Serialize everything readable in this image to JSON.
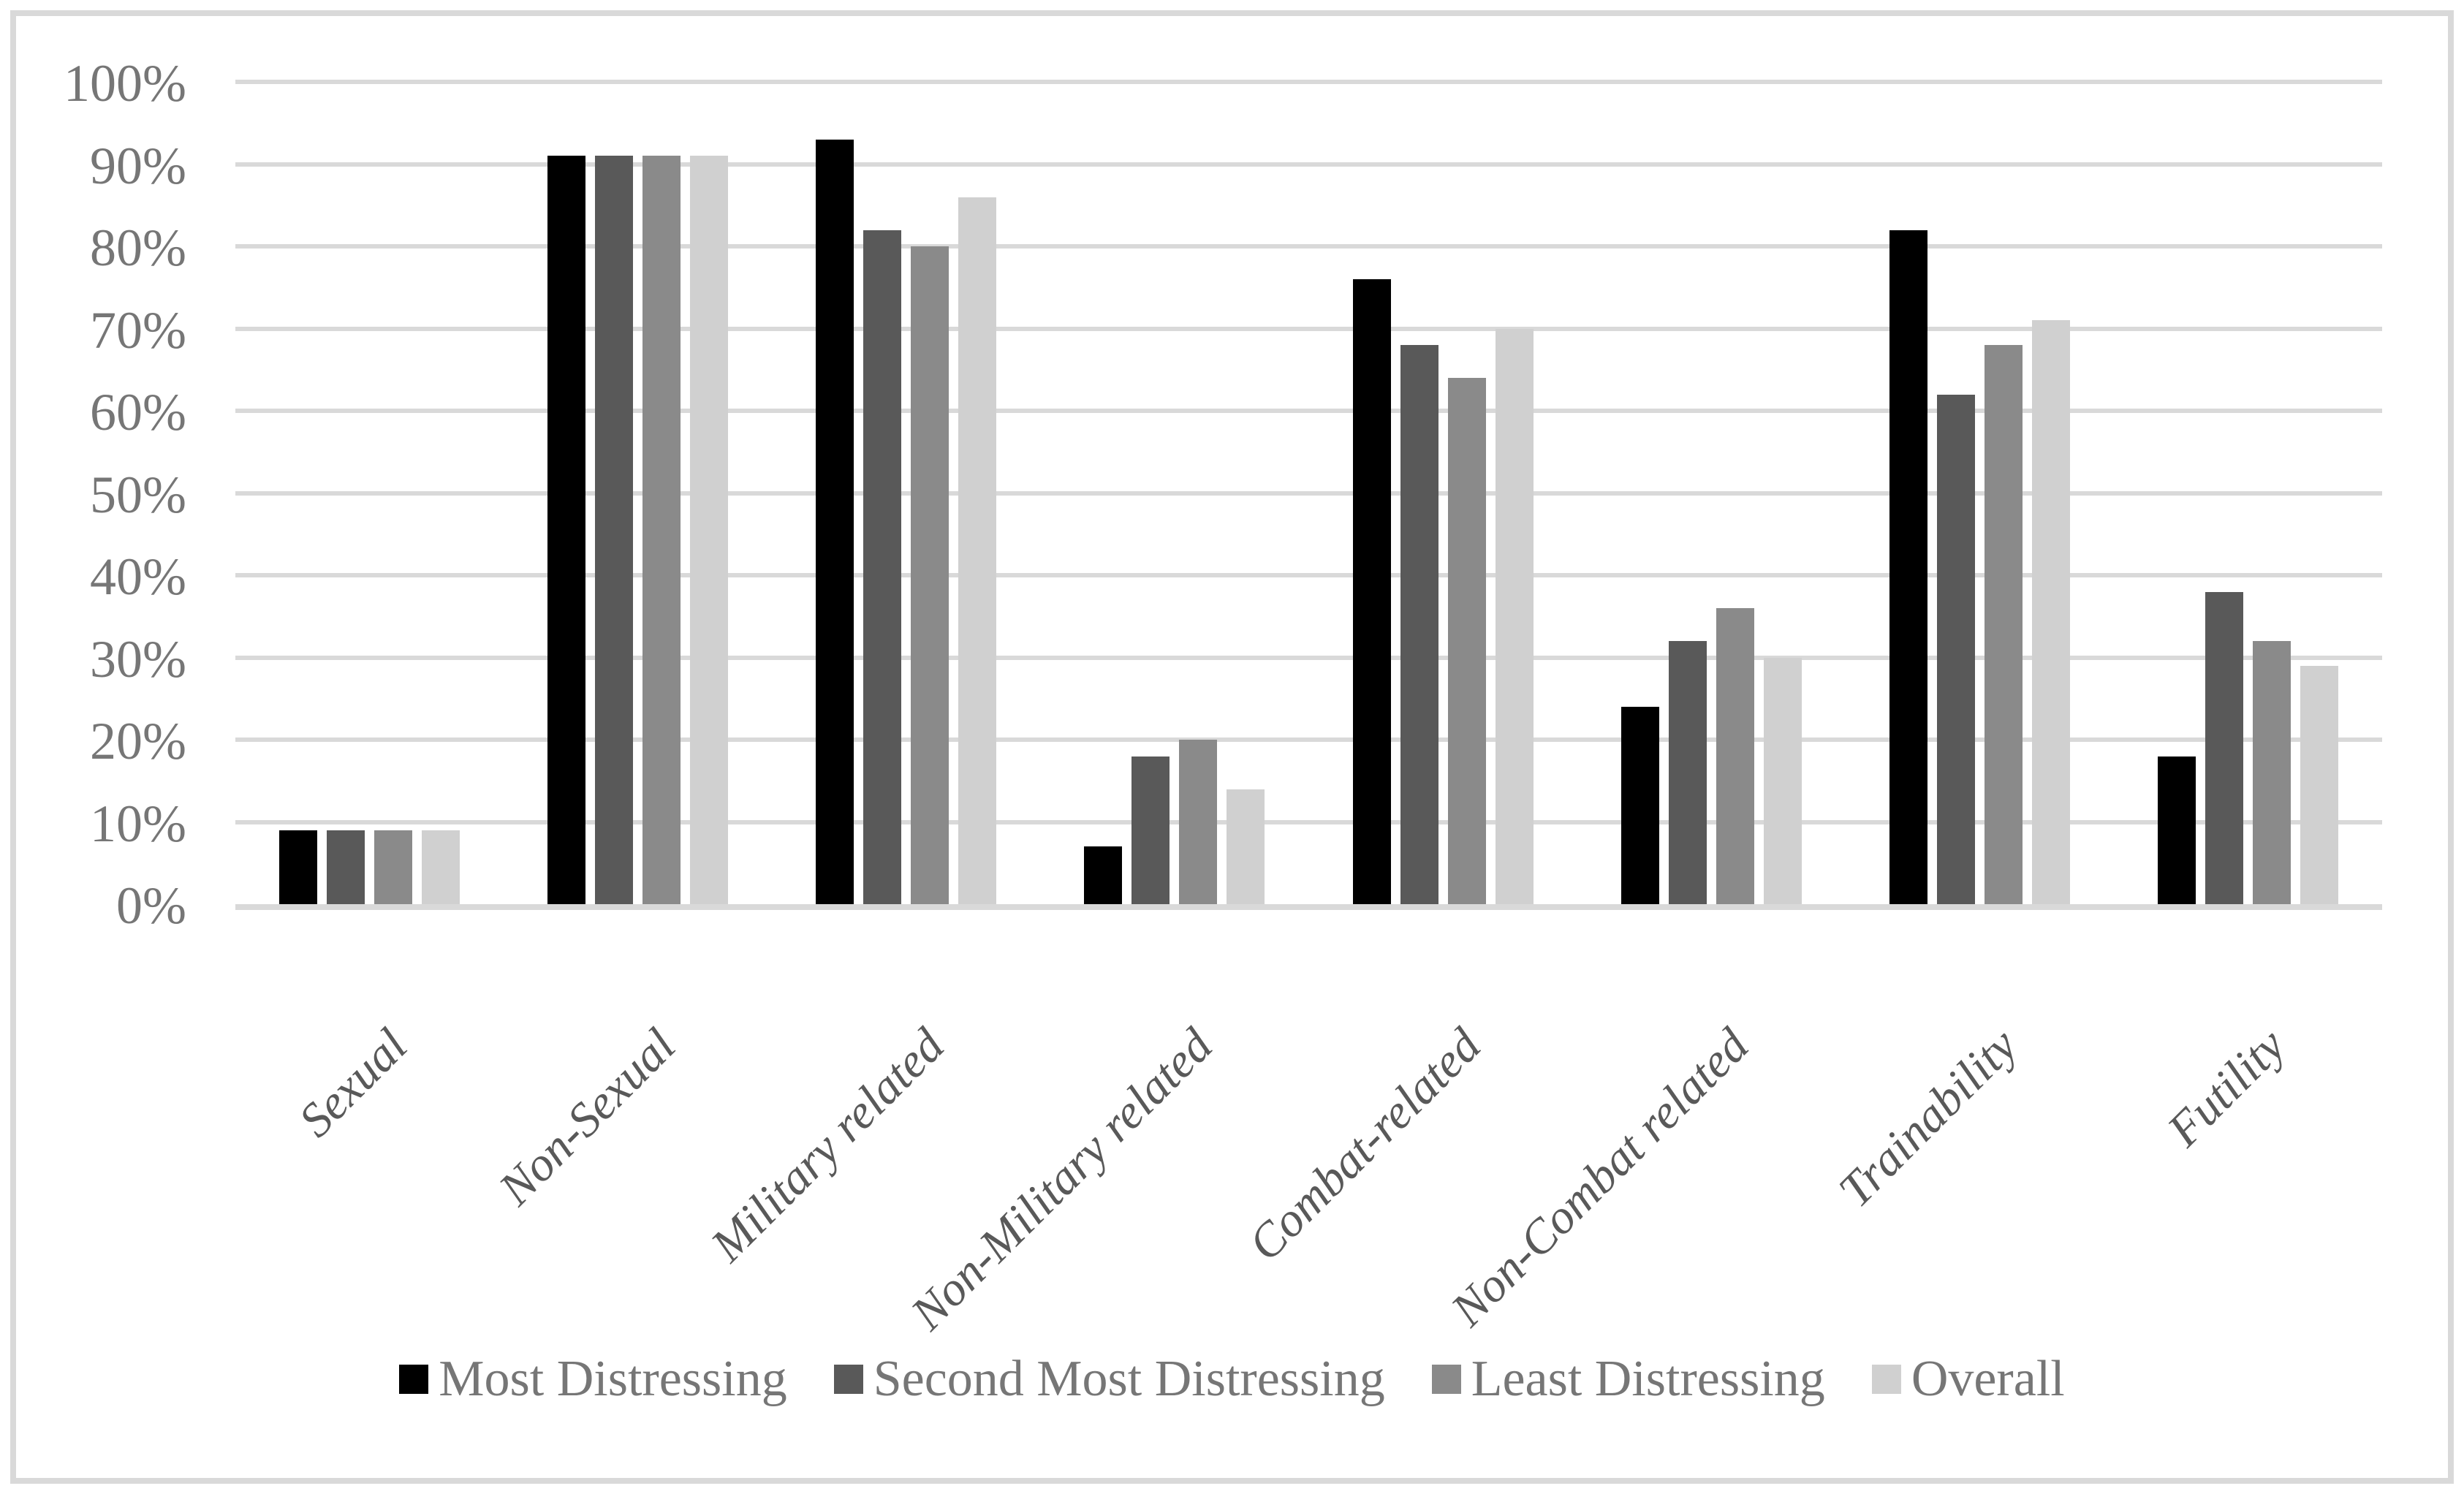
{
  "figure": {
    "background_color": "#ffffff",
    "border_color": "#d9d9d9",
    "gridline_color": "#d9d9d9",
    "y_tick_label_color": "#767676",
    "x_tick_label_color": "#595959",
    "legend_text_color": "#767676"
  },
  "chart_data": {
    "type": "bar",
    "title": "",
    "xlabel": "",
    "ylabel": "",
    "ylim": [
      0,
      100
    ],
    "grid": true,
    "legend_position": "bottom",
    "y_ticks": [
      {
        "value": 0,
        "label": "0%"
      },
      {
        "value": 10,
        "label": "10%"
      },
      {
        "value": 20,
        "label": "20%"
      },
      {
        "value": 30,
        "label": "30%"
      },
      {
        "value": 40,
        "label": "40%"
      },
      {
        "value": 50,
        "label": "50%"
      },
      {
        "value": 60,
        "label": "60%"
      },
      {
        "value": 70,
        "label": "70%"
      },
      {
        "value": 80,
        "label": "80%"
      },
      {
        "value": 90,
        "label": "90%"
      },
      {
        "value": 100,
        "label": "100%"
      }
    ],
    "categories": [
      "Sexual",
      "Non-Sexual",
      "Military related",
      "Non-Military related",
      "Combat-related",
      "Non-Combat related",
      "Trainability",
      "Futility"
    ],
    "series": [
      {
        "name": "Most Distressing",
        "color": "#000000",
        "values": [
          9,
          91,
          93,
          7,
          76,
          24,
          82,
          18
        ]
      },
      {
        "name": "Second Most Distressing",
        "color": "#595959",
        "values": [
          9,
          91,
          82,
          18,
          68,
          32,
          62,
          38
        ]
      },
      {
        "name": "Least Distressing",
        "color": "#8a8a8a",
        "values": [
          9,
          91,
          80,
          20,
          64,
          36,
          68,
          32
        ]
      },
      {
        "name": "Overall",
        "color": "#d0d0d0",
        "values": [
          9,
          91,
          86,
          14,
          70,
          30,
          71,
          29
        ]
      }
    ]
  }
}
